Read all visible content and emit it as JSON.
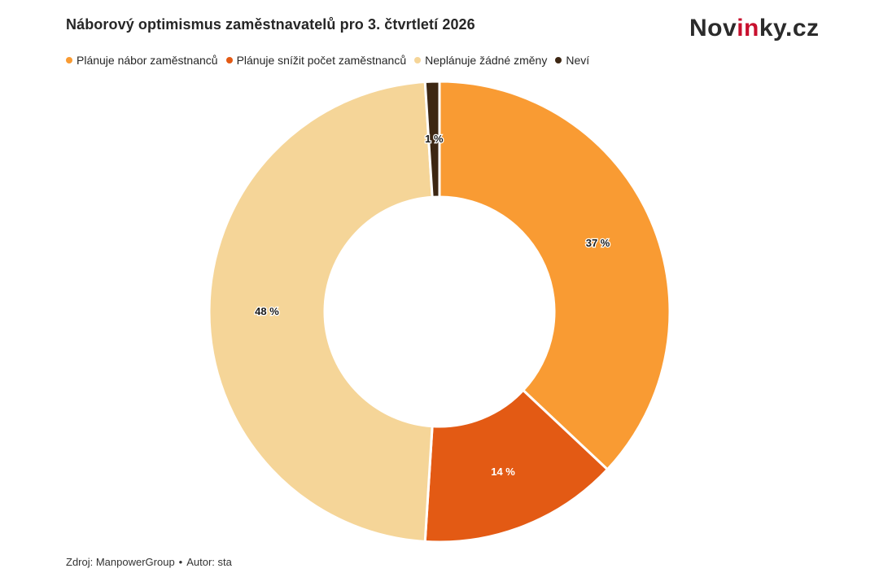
{
  "title": "Náborový optimismus zaměstnavatelů pro 3. čtvrtletí 2026",
  "logo": {
    "prefix": "Nov",
    "accent": "in",
    "suffix": "ky.cz"
  },
  "footer": {
    "source": "Zdroj: ManpowerGroup",
    "separator": "•",
    "author": "Autor: sta"
  },
  "chart_data": {
    "type": "pie",
    "variant": "donut",
    "legend_position": "top-left",
    "categories": [
      "Plánuje nábor zaměstnanců",
      "Plánuje snížit počet zaměstnanců",
      "Neplánuje žádné změny",
      "Neví"
    ],
    "values": [
      37,
      14,
      48,
      1
    ],
    "labels": [
      "37 %",
      "14 %",
      "48 %",
      "1 %"
    ],
    "colors": [
      "#f99b33",
      "#e35a14",
      "#f5d598",
      "#3d2713"
    ],
    "label_colors": [
      "#1a1a1a",
      "#ffffff",
      "#1a1a1a",
      "#1a1a1a"
    ]
  }
}
